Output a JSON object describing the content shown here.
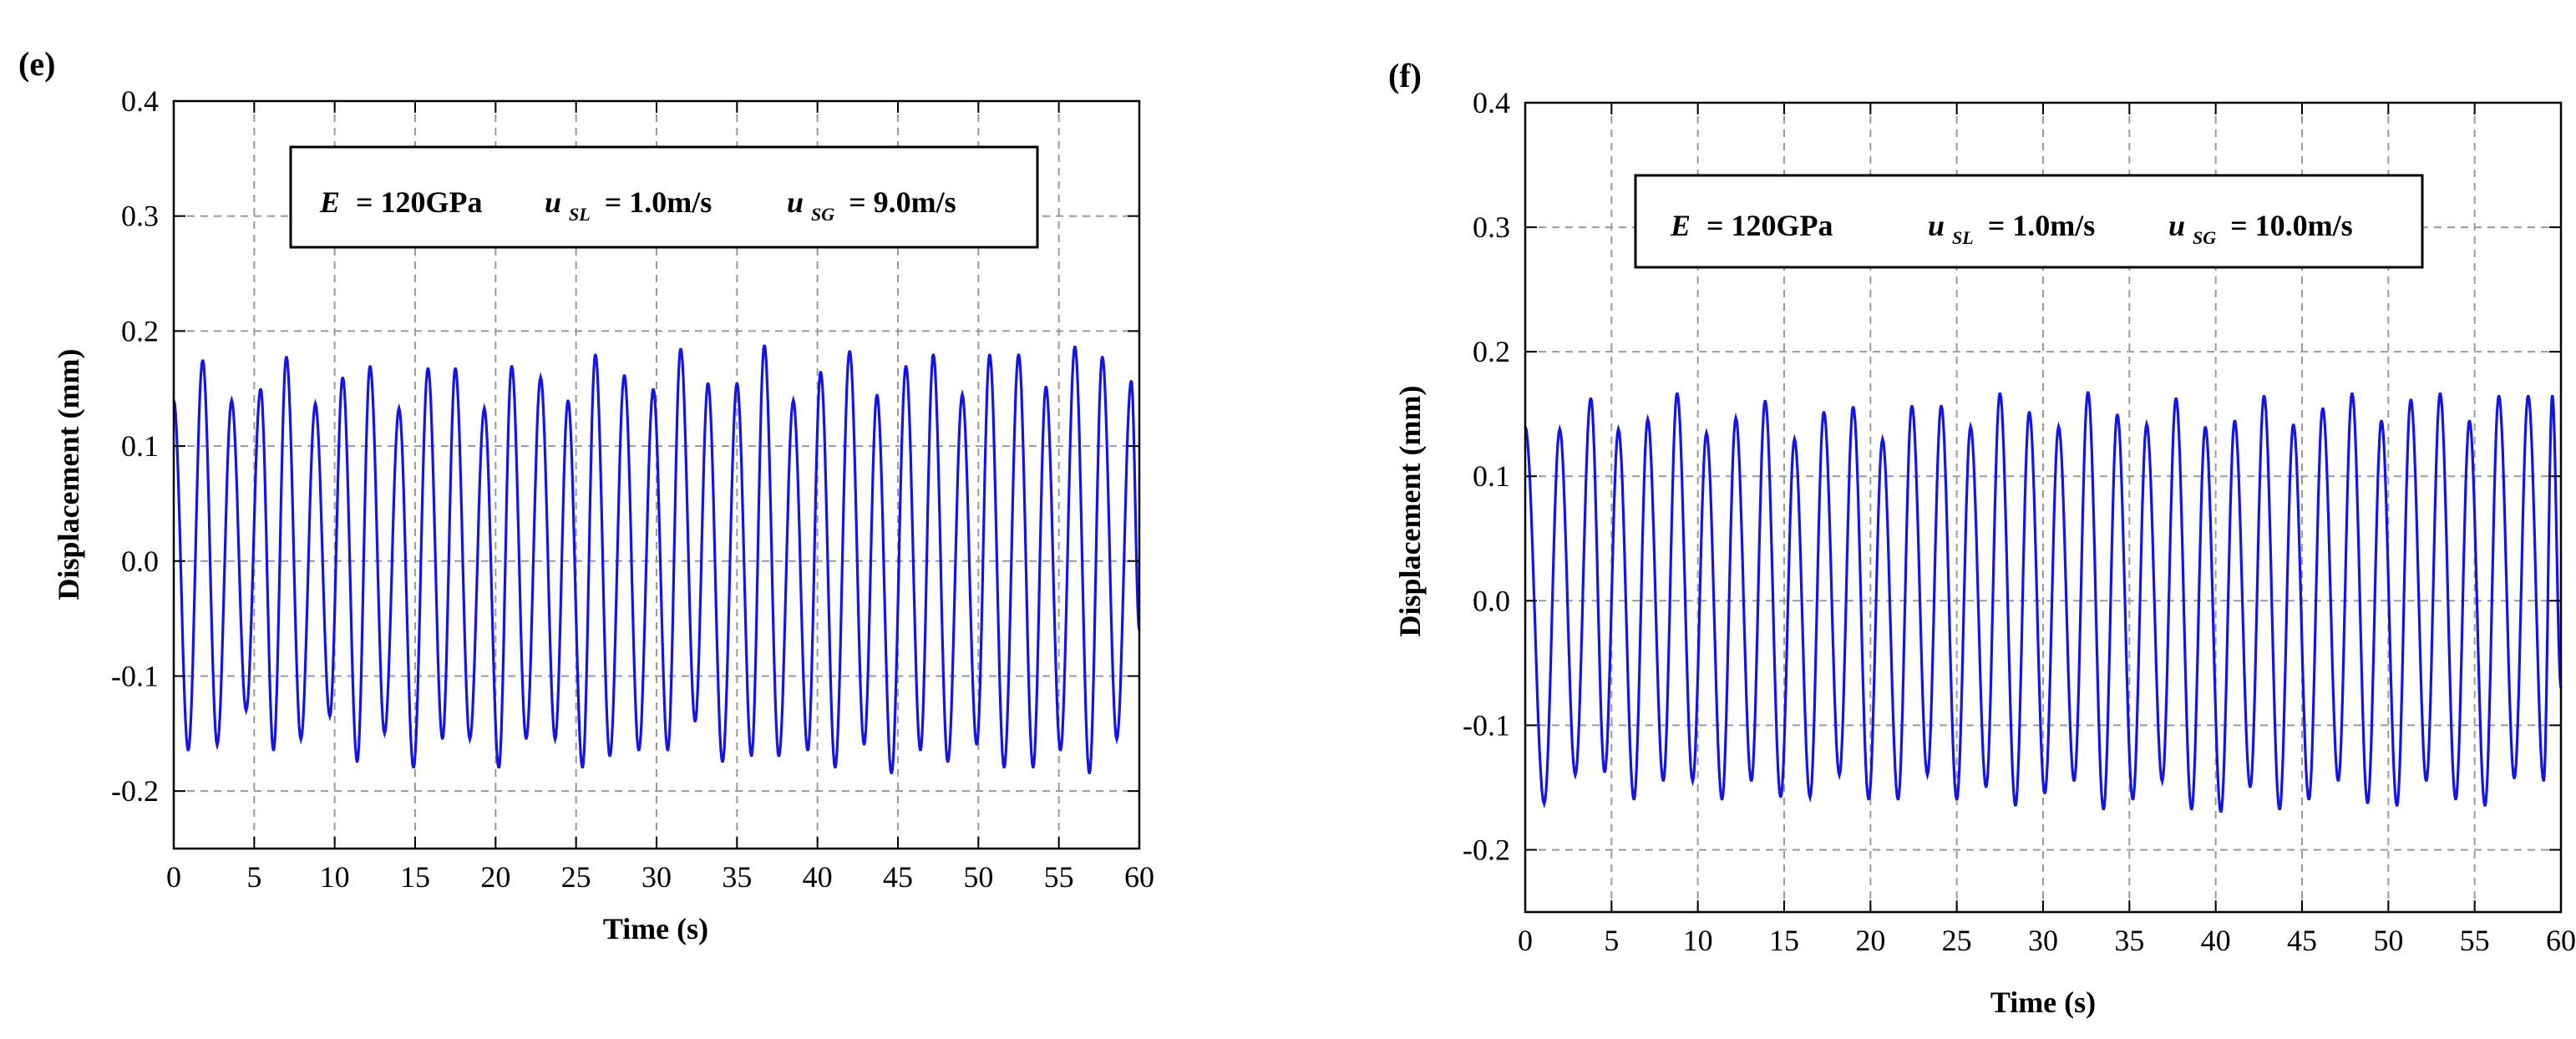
{
  "series_color": "#1414e6",
  "chart_data": [
    {
      "type": "line",
      "panel_label": "(e)",
      "xlabel": "Time (s)",
      "ylabel": "Displacement (mm)",
      "xlim": [
        0,
        60
      ],
      "ylim": [
        -0.25,
        0.4
      ],
      "xticks": [
        0,
        5,
        10,
        15,
        20,
        25,
        30,
        35,
        40,
        45,
        50,
        55,
        60
      ],
      "xtick_labels": [
        "0",
        "5",
        "10",
        "15",
        "20",
        "25",
        "30",
        "35",
        "40",
        "45",
        "50",
        "55",
        "60"
      ],
      "yticks": [
        -0.2,
        -0.1,
        0.0,
        0.1,
        0.2,
        0.3,
        0.4
      ],
      "ytick_labels": [
        "-0.2",
        "-0.1",
        "0.0",
        "0.1",
        "0.2",
        "0.3",
        "0.4"
      ],
      "grid": true,
      "annotation": {
        "e_label": "E",
        "e_value": "= 120GPa",
        "usl_label": "u",
        "usl_sub": "SL",
        "usl_value": "= 1.0m/s",
        "usg_label": "u",
        "usg_sub": "SG",
        "usg_value": "= 9.0m/s"
      },
      "series": [
        {
          "name": "Displacement",
          "start_value": 0.14,
          "end_value": -0.06,
          "peak_times": [
            1.8,
            3.6,
            5.4,
            7.0,
            8.8,
            10.5,
            12.2,
            14.0,
            15.8,
            17.5,
            19.3,
            21.0,
            22.8,
            24.5,
            26.2,
            28.0,
            29.8,
            31.5,
            33.2,
            35.0,
            36.7,
            38.5,
            40.2,
            42.0,
            43.7,
            45.5,
            47.2,
            49.0,
            50.7,
            52.5,
            54.2,
            56.0,
            57.7,
            59.5
          ],
          "peaks": [
            0.175,
            0.14,
            0.15,
            0.178,
            0.137,
            0.16,
            0.17,
            0.133,
            0.168,
            0.168,
            0.133,
            0.17,
            0.16,
            0.14,
            0.18,
            0.162,
            0.15,
            0.185,
            0.155,
            0.155,
            0.188,
            0.14,
            0.165,
            0.183,
            0.145,
            0.17,
            0.18,
            0.145,
            0.18,
            0.18,
            0.152,
            0.187,
            0.178,
            0.157
          ],
          "trough_times": [
            0.9,
            2.7,
            4.5,
            6.2,
            7.9,
            9.7,
            11.4,
            13.1,
            14.9,
            16.7,
            18.4,
            20.2,
            21.9,
            23.7,
            25.4,
            27.1,
            28.9,
            30.7,
            32.4,
            34.1,
            35.9,
            37.6,
            39.4,
            41.1,
            42.9,
            44.6,
            46.4,
            48.1,
            49.9,
            51.6,
            53.4,
            55.1,
            56.9,
            58.6
          ],
          "troughs": [
            -0.165,
            -0.16,
            -0.13,
            -0.165,
            -0.155,
            -0.135,
            -0.175,
            -0.15,
            -0.18,
            -0.155,
            -0.155,
            -0.18,
            -0.155,
            -0.155,
            -0.18,
            -0.17,
            -0.165,
            -0.165,
            -0.14,
            -0.175,
            -0.17,
            -0.17,
            -0.165,
            -0.18,
            -0.16,
            -0.185,
            -0.165,
            -0.175,
            -0.16,
            -0.18,
            -0.18,
            -0.165,
            -0.185,
            -0.155
          ]
        }
      ]
    },
    {
      "type": "line",
      "panel_label": "(f)",
      "xlabel": "Time (s)",
      "ylabel": "Displacement (mm)",
      "xlim": [
        0,
        60
      ],
      "ylim": [
        -0.25,
        0.4
      ],
      "xticks": [
        0,
        5,
        10,
        15,
        20,
        25,
        30,
        35,
        40,
        45,
        50,
        55,
        60
      ],
      "xtick_labels": [
        "0",
        "5",
        "10",
        "15",
        "20",
        "25",
        "30",
        "35",
        "40",
        "45",
        "50",
        "55",
        "60"
      ],
      "yticks": [
        -0.2,
        -0.1,
        0.0,
        0.1,
        0.2,
        0.3,
        0.4
      ],
      "ytick_labels": [
        "-0.2",
        "-0.1",
        "0.0",
        "0.1",
        "0.2",
        "0.3",
        "0.4"
      ],
      "grid": true,
      "annotation": {
        "e_label": "E",
        "e_value": "= 120GPa",
        "usl_label": "u",
        "usl_sub": "SL",
        "usl_value": "= 1.0m/s",
        "usg_label": "u",
        "usg_sub": "SG",
        "usg_value": "= 10.0m/s"
      },
      "series": [
        {
          "name": "Displacement",
          "start_value": 0.14,
          "end_value": -0.07,
          "peak_times": [
            2.0,
            3.8,
            5.4,
            7.1,
            8.8,
            10.5,
            12.2,
            13.9,
            15.6,
            17.3,
            19.0,
            20.7,
            22.4,
            24.1,
            25.8,
            27.5,
            29.2,
            30.9,
            32.6,
            34.3,
            36.0,
            37.7,
            39.4,
            41.1,
            42.8,
            44.5,
            46.2,
            47.9,
            49.6,
            51.3,
            53.0,
            54.7,
            56.4,
            58.1,
            59.5
          ],
          "peaks": [
            0.138,
            0.163,
            0.138,
            0.146,
            0.167,
            0.135,
            0.147,
            0.161,
            0.13,
            0.152,
            0.156,
            0.13,
            0.157,
            0.157,
            0.14,
            0.167,
            0.152,
            0.14,
            0.168,
            0.15,
            0.142,
            0.163,
            0.14,
            0.145,
            0.165,
            0.142,
            0.155,
            0.167,
            0.145,
            0.162,
            0.167,
            0.145,
            0.165,
            0.165,
            0.165
          ],
          "trough_times": [
            1.1,
            2.9,
            4.6,
            6.3,
            8.0,
            9.7,
            11.4,
            13.1,
            14.8,
            16.5,
            18.2,
            19.9,
            21.6,
            23.3,
            25.0,
            26.7,
            28.4,
            30.1,
            31.8,
            33.5,
            35.2,
            36.9,
            38.6,
            40.3,
            42.0,
            43.7,
            45.4,
            47.1,
            48.8,
            50.5,
            52.2,
            53.9,
            55.6,
            57.3,
            59.0
          ],
          "troughs": [
            -0.163,
            -0.14,
            -0.138,
            -0.16,
            -0.145,
            -0.145,
            -0.16,
            -0.145,
            -0.158,
            -0.158,
            -0.14,
            -0.16,
            -0.16,
            -0.14,
            -0.16,
            -0.15,
            -0.165,
            -0.155,
            -0.145,
            -0.168,
            -0.16,
            -0.145,
            -0.168,
            -0.17,
            -0.15,
            -0.168,
            -0.16,
            -0.145,
            -0.163,
            -0.165,
            -0.145,
            -0.16,
            -0.165,
            -0.143,
            -0.145
          ]
        }
      ]
    }
  ]
}
